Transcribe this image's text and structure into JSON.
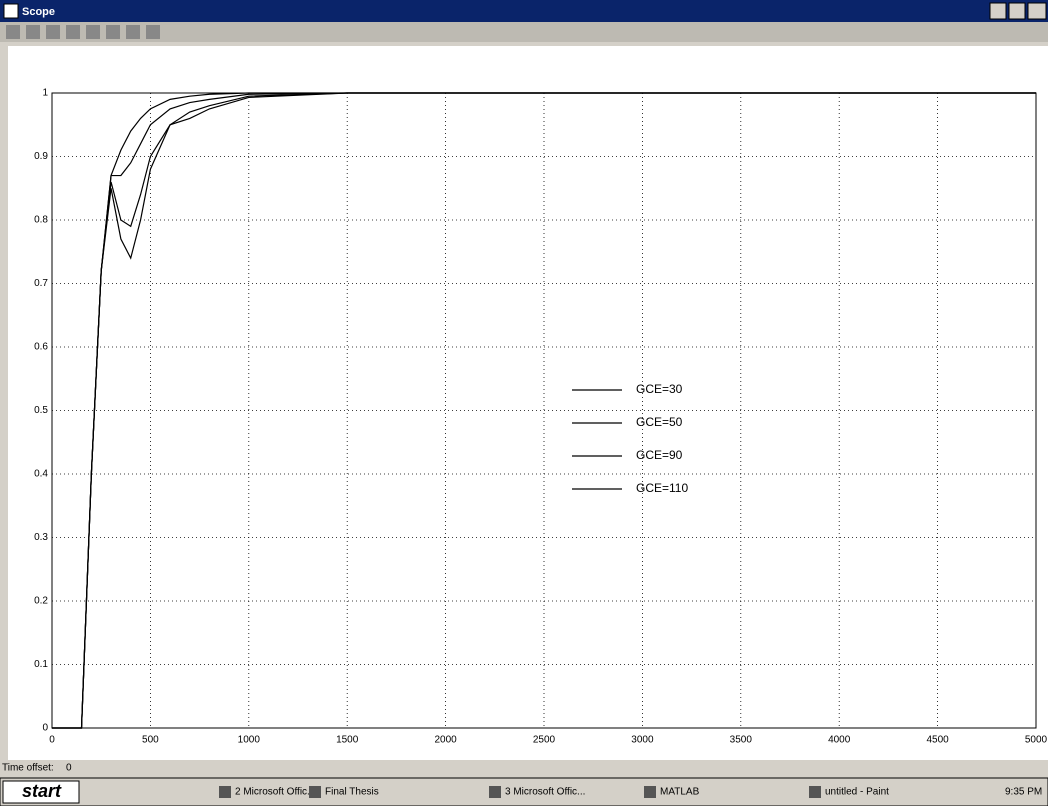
{
  "window": {
    "title": "Scope"
  },
  "chart_data": {
    "type": "line",
    "x": [
      0,
      150,
      200,
      250,
      300,
      350,
      400,
      450,
      500,
      600,
      700,
      800,
      1000,
      1500,
      5000
    ],
    "series": [
      {
        "name": "GCE=30",
        "color": "#000000",
        "values": [
          0,
          0,
          0.4,
          0.72,
          0.87,
          0.91,
          0.94,
          0.96,
          0.975,
          0.99,
          0.995,
          0.998,
          1,
          1,
          1
        ]
      },
      {
        "name": "GCE=50",
        "color": "#000000",
        "values": [
          0,
          0,
          0.4,
          0.72,
          0.87,
          0.87,
          0.89,
          0.92,
          0.95,
          0.975,
          0.985,
          0.99,
          0.998,
          1,
          1
        ]
      },
      {
        "name": "GCE=90",
        "color": "#000000",
        "values": [
          0,
          0,
          0.4,
          0.72,
          0.86,
          0.8,
          0.79,
          0.84,
          0.9,
          0.95,
          0.97,
          0.98,
          0.995,
          1,
          1
        ]
      },
      {
        "name": "GCE=110",
        "color": "#000000",
        "values": [
          0,
          0,
          0.4,
          0.72,
          0.85,
          0.77,
          0.74,
          0.8,
          0.88,
          0.95,
          0.96,
          0.975,
          0.993,
          1,
          1
        ]
      }
    ],
    "xlim": [
      0,
      5000
    ],
    "ylim": [
      0,
      1
    ],
    "xticks": [
      0,
      500,
      1000,
      1500,
      2000,
      2500,
      3000,
      3500,
      4000,
      4500,
      5000
    ],
    "yticks": [
      0,
      0.1,
      0.2,
      0.3,
      0.4,
      0.5,
      0.6,
      0.7,
      0.8,
      0.9,
      1
    ],
    "grid": true
  },
  "status": {
    "time_offset_label": "Time offset:",
    "time_offset_value": "0"
  },
  "taskbar": {
    "start": "start",
    "items": [
      "2 Microsoft Offic...",
      "Final Thesis",
      "3 Microsoft Offic...",
      "MATLAB",
      "untitled - Paint"
    ],
    "clock": "9:35 PM"
  }
}
